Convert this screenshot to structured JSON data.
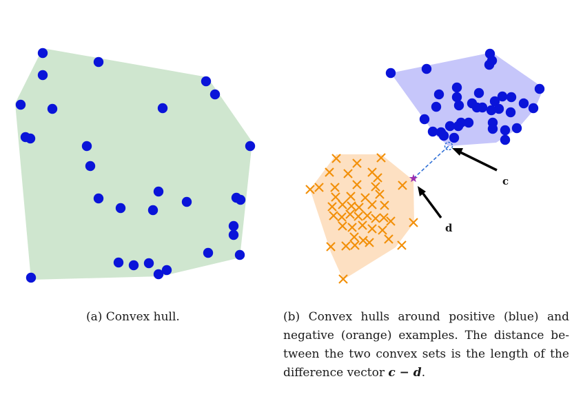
{
  "colors": {
    "hull_green": "#cfe6cf",
    "hull_blue": "#c6c6fa",
    "hull_orange": "#fde0c2",
    "point_blue": "#0a14d9",
    "cross_orange": "#f2900a",
    "star_purple": "#9b2fb0",
    "dashed_line": "#2e6fd6",
    "arrow": "#000000"
  },
  "icons": {
    "positive_marker": "filled-circle",
    "negative_marker": "x-cross",
    "point_d_marker": "star",
    "point_c_marker": "dashed-circle"
  },
  "panel_a": {
    "caption": "(a) Convex hull."
  },
  "panel_b": {
    "label_c": "c",
    "label_d": "d",
    "caption_lines": [
      "(b) Convex hulls around positive (blue) and",
      "negative (orange) examples. The distance be-",
      "tween the two convex sets is the length of the"
    ],
    "caption_last_prefix": "difference vector ",
    "caption_math": "c − d",
    "caption_last_suffix": "."
  }
}
